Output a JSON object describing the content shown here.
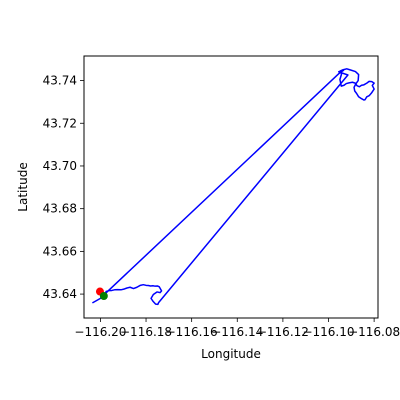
{
  "chart_data": {
    "type": "line",
    "xlabel": "Longitude",
    "ylabel": "Latitude",
    "xlim": [
      -116.2072,
      -116.0783
    ],
    "ylim": [
      43.6288,
      43.7515
    ],
    "grid": false,
    "x_ticks": [
      {
        "value": -116.2,
        "label": "−116.20"
      },
      {
        "value": -116.18,
        "label": "−116.18"
      },
      {
        "value": -116.16,
        "label": "−116.16"
      },
      {
        "value": -116.14,
        "label": "−116.14"
      },
      {
        "value": -116.12,
        "label": "−116.12"
      },
      {
        "value": -116.1,
        "label": "−116.10"
      },
      {
        "value": -116.08,
        "label": "−116.08"
      }
    ],
    "y_ticks": [
      {
        "value": 43.64,
        "label": "43.64"
      },
      {
        "value": 43.66,
        "label": "43.66"
      },
      {
        "value": 43.68,
        "label": "43.68"
      },
      {
        "value": 43.7,
        "label": "43.70"
      },
      {
        "value": 43.72,
        "label": "43.72"
      },
      {
        "value": 43.74,
        "label": "43.74"
      }
    ],
    "series": [
      {
        "color": "#0000ff",
        "x": [
          -116.2033,
          -116.2,
          -116.198,
          -116.1975,
          -116.1963,
          -116.195,
          -116.1938,
          -116.1925,
          -116.191,
          -116.1895,
          -116.1885,
          -116.187,
          -116.1855,
          -116.184,
          -116.1825,
          -116.1812,
          -116.18,
          -116.179,
          -116.178,
          -116.177,
          -116.176,
          -116.175,
          -116.1742,
          -116.1732,
          -116.1738,
          -116.1752,
          -116.1768,
          -116.1778,
          -116.177,
          -116.1758,
          -116.1748,
          -116.1745,
          -116.0915,
          -116.0955,
          -116.0938,
          -116.092,
          -116.0905,
          -116.0882,
          -116.0868,
          -116.087,
          -116.088,
          -116.0888,
          -116.0885,
          -116.0877,
          -116.0868,
          -116.0855,
          -116.0845,
          -116.084,
          -116.0832,
          -116.0822,
          -116.0812,
          -116.08,
          -116.0808,
          -116.08,
          -116.081,
          -116.0822,
          -116.0832,
          -116.0845,
          -116.0855,
          -116.0865,
          -116.0875,
          -116.0883,
          -116.0895,
          -116.091,
          -116.0922,
          -116.0932,
          -116.0944,
          -116.095,
          -116.0943,
          -116.0948,
          -116.0942,
          -116.0934,
          -116.095,
          -116.0958,
          -116.1985
        ],
        "y": [
          43.636,
          43.638,
          43.64,
          43.6412,
          43.6416,
          43.6417,
          43.642,
          43.6421,
          43.642,
          43.6424,
          43.6428,
          43.6432,
          43.6426,
          43.6432,
          43.6441,
          43.6444,
          43.6441,
          43.644,
          43.6438,
          43.6439,
          43.6437,
          43.6438,
          43.6434,
          43.6415,
          43.6407,
          43.641,
          43.6398,
          43.638,
          43.6367,
          43.6353,
          43.6352,
          43.636,
          43.7426,
          43.7441,
          43.745,
          43.7455,
          43.745,
          43.7442,
          43.7428,
          43.74,
          43.7385,
          43.7368,
          43.7351,
          43.734,
          43.7324,
          43.7315,
          43.7309,
          43.731,
          43.7324,
          43.7329,
          43.7341,
          43.736,
          43.7377,
          43.7388,
          43.7395,
          43.7396,
          43.7388,
          43.738,
          43.7378,
          43.7371,
          43.7376,
          43.7388,
          43.7392,
          43.7389,
          43.7386,
          43.7378,
          43.7374,
          43.7405,
          43.743,
          43.7445,
          43.7448,
          43.7448,
          43.7437,
          43.7429,
          43.6396
        ]
      }
    ],
    "points": [
      {
        "x": -116.2002,
        "y": 43.6412,
        "color": "#ff0000"
      },
      {
        "x": -116.1985,
        "y": 43.6391,
        "color": "#008000"
      }
    ]
  }
}
